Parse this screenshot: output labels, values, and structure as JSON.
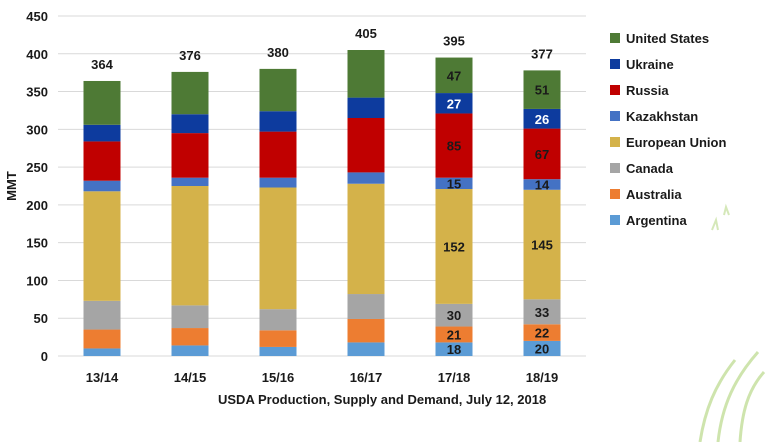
{
  "chart_data": {
    "type": "bar",
    "stacked": true,
    "ylabel": "MMT",
    "ylim": [
      0,
      450
    ],
    "yticks": [
      0,
      50,
      100,
      150,
      200,
      250,
      300,
      350,
      400,
      450
    ],
    "grid": true,
    "legend_position": "right",
    "categories": [
      "13/14",
      "14/15",
      "15/16",
      "16/17",
      "17/18",
      "18/19"
    ],
    "totals": [
      364,
      376,
      380,
      405,
      395,
      377
    ],
    "series": [
      {
        "name": "Argentina",
        "color": "#5b9bd5",
        "values": [
          10,
          14,
          12,
          18,
          18,
          20
        ],
        "labels": [
          null,
          null,
          null,
          null,
          "18",
          "20"
        ],
        "label_color": "#1a1a1a"
      },
      {
        "name": "Australia",
        "color": "#ed7d31",
        "values": [
          25,
          23,
          22,
          31,
          21,
          22
        ],
        "labels": [
          null,
          null,
          null,
          null,
          "21",
          "22"
        ],
        "label_color": "#1a1a1a"
      },
      {
        "name": "Canada",
        "color": "#a5a5a5",
        "values": [
          38,
          30,
          28,
          33,
          30,
          33
        ],
        "labels": [
          null,
          null,
          null,
          null,
          "30",
          "33"
        ],
        "label_color": "#1a1a1a"
      },
      {
        "name": "European Union",
        "color": "#d4b24a",
        "values": [
          145,
          158,
          161,
          146,
          152,
          145
        ],
        "labels": [
          null,
          null,
          null,
          null,
          "152",
          "145"
        ],
        "label_color": "#1a1a1a"
      },
      {
        "name": "Kazakhstan",
        "color": "#4472c4",
        "values": [
          14,
          11,
          13,
          15,
          15,
          14
        ],
        "labels": [
          null,
          null,
          null,
          null,
          "15",
          "14"
        ],
        "label_color": "#1a1a1a"
      },
      {
        "name": "Russia",
        "color": "#c00000",
        "values": [
          52,
          59,
          61,
          72,
          85,
          67
        ],
        "labels": [
          null,
          null,
          null,
          null,
          "85",
          "67"
        ],
        "label_color": "#1a1a1a"
      },
      {
        "name": "Ukraine",
        "color": "#0d3b9e",
        "values": [
          22,
          25,
          27,
          27,
          27,
          26
        ],
        "labels": [
          null,
          null,
          null,
          null,
          "27",
          "26"
        ],
        "label_color": "#ffffff"
      },
      {
        "name": "United States",
        "color": "#4e7a35",
        "values": [
          58,
          56,
          56,
          63,
          47,
          51
        ],
        "labels": [
          null,
          null,
          null,
          null,
          "47",
          "51"
        ],
        "label_color": "#1a1a1a"
      }
    ],
    "legend_order": [
      "United States",
      "Ukraine",
      "Russia",
      "Kazakhstan",
      "European Union",
      "Canada",
      "Australia",
      "Argentina"
    ],
    "annotations": [
      "USDA Production, Supply and Demand, July 12, 2018"
    ]
  }
}
